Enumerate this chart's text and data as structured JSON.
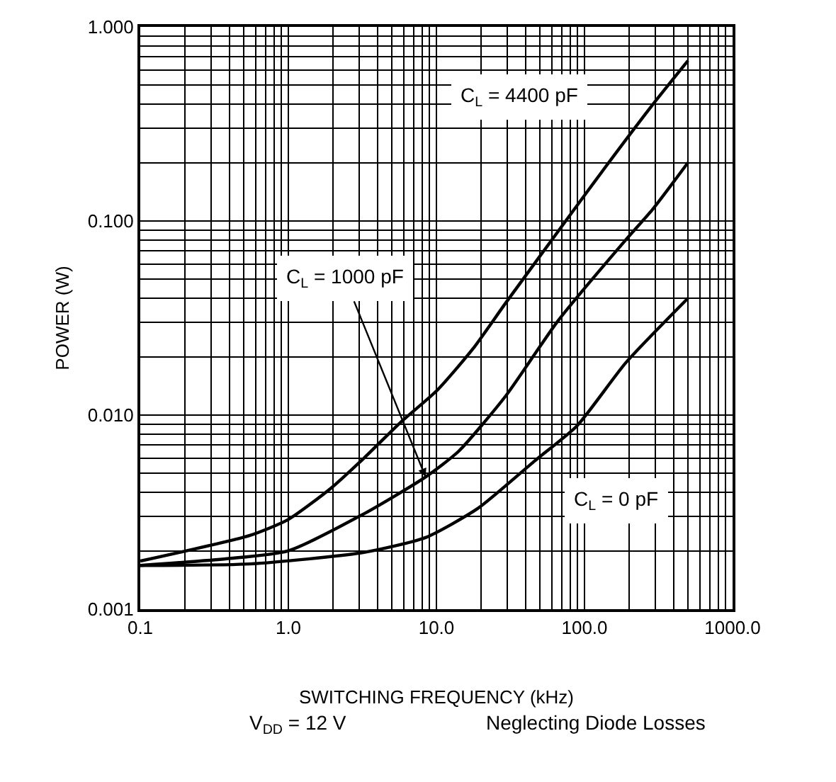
{
  "chart_data": {
    "type": "line",
    "xlabel": "SWITCHING FREQUENCY (kHz)",
    "ylabel": "POWER (W)",
    "log": "xy",
    "grid": true,
    "legend": false,
    "marker": "none",
    "line_style": "solid",
    "xlim": [
      0.1,
      1000
    ],
    "ylim": [
      0.001,
      1
    ],
    "xticks": [
      0.1,
      {
        "value": 1,
        "label": "1.0"
      },
      {
        "value": 10,
        "label": "10.0"
      },
      {
        "value": 100,
        "label": "100.0"
      },
      {
        "value": 1000,
        "label": "1000.0"
      }
    ],
    "yticks": [
      {
        "value": 0.001,
        "label": "0.001"
      },
      {
        "value": 0.01,
        "label": "0.010"
      },
      {
        "value": 0.1,
        "label": "0.100"
      },
      {
        "value": 1,
        "label": "1.000"
      }
    ],
    "series": [
      {
        "name": "C$_{L}$ = 4400 pF",
        "color": "#000000",
        "x": [
          0.1,
          0.55,
          1.0,
          1.94,
          3.24,
          5.84,
          10,
          17.6,
          29.5,
          76.8,
          138,
          289,
          500
        ],
        "values": [
          0.00177,
          0.0024,
          0.0029,
          0.0042,
          0.006,
          0.0093,
          0.0133,
          0.0219,
          0.038,
          0.103,
          0.189,
          0.398,
          0.67
        ]
      },
      {
        "color": "#000000",
        "x": [
          0.1,
          0.385,
          1.0,
          3.24,
          8.45,
          14.1,
          29.5,
          66,
          190,
          289,
          500
        ],
        "values": [
          0.00168,
          0.00182,
          0.002,
          0.0031,
          0.0048,
          0.0065,
          0.0126,
          0.0305,
          0.08,
          0.115,
          0.2
        ]
      },
      {
        "name": "C$_{L}$ = 0 pF",
        "color": "#000000",
        "x": [
          0.1,
          0.55,
          3.24,
          8.45,
          19,
          46,
          89,
          190,
          500
        ],
        "values": [
          0.00168,
          0.00171,
          0.00196,
          0.00234,
          0.0033,
          0.0058,
          0.0088,
          0.0186,
          0.04
        ]
      }
    ],
    "annotations": [
      {
        "text": "C$_{L}$ = 1000 pF",
        "x": 8.45,
        "y": 0.0048
      },
      "V$_{DD}$ = 12 V",
      "Neglecting Diode Losses"
    ]
  }
}
